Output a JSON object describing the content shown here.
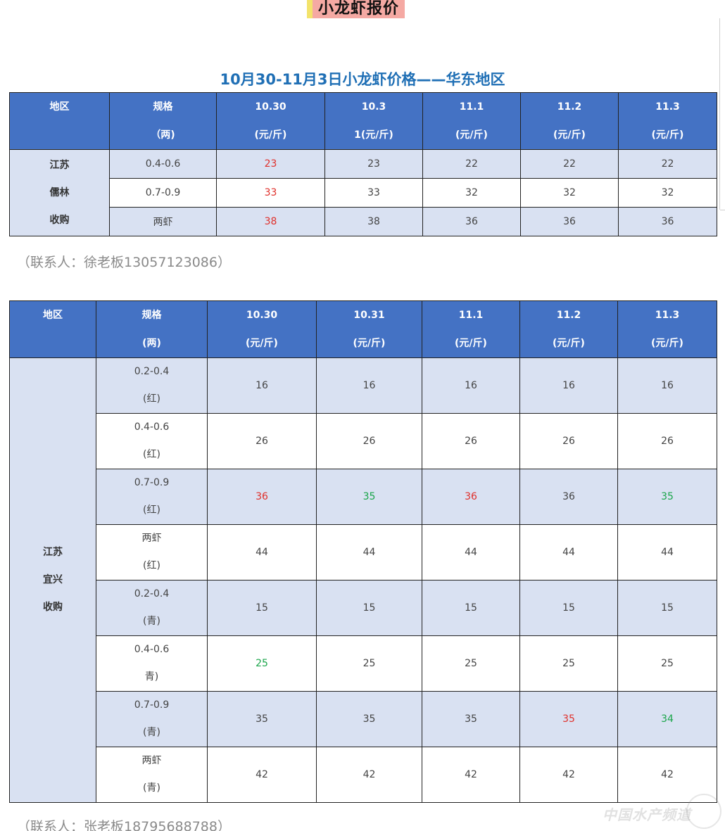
{
  "banner": {
    "title": "小龙虾报价"
  },
  "table1": {
    "title": "10月30-11月3日小龙虾价格——华东地区",
    "headers": [
      {
        "l1": "地区",
        "l2": ""
      },
      {
        "l1": "规格",
        "l2": "（两)"
      },
      {
        "l1": "10.30",
        "l2": "(元/斤)"
      },
      {
        "l1": "10.3",
        "l2": "1(元/斤)"
      },
      {
        "l1": "11.1",
        "l2": "(元/斤)"
      },
      {
        "l1": "11.2",
        "l2": "(元/斤)"
      },
      {
        "l1": "11.3",
        "l2": "(元/斤)"
      }
    ],
    "region": [
      "江苏",
      "儒林",
      "收购"
    ],
    "rows": [
      {
        "spec": "0.4-0.6",
        "prices": [
          "23",
          "23",
          "22",
          "22",
          "22"
        ]
      },
      {
        "spec": "0.7-0.9",
        "prices": [
          "33",
          "33",
          "32",
          "32",
          "32"
        ]
      },
      {
        "spec": "两虾",
        "prices": [
          "38",
          "38",
          "36",
          "36",
          "36"
        ]
      }
    ],
    "contact": "（联系人：徐老板13057123086）"
  },
  "table2": {
    "headers": [
      {
        "l1": "地区",
        "l2": ""
      },
      {
        "l1": "规格",
        "l2": "(两)"
      },
      {
        "l1": "10.30",
        "l2": "(元/斤)"
      },
      {
        "l1": "10.31",
        "l2": "(元/斤)"
      },
      {
        "l1": "11.1",
        "l2": "(元/斤)"
      },
      {
        "l1": "11.2",
        "l2": "(元/斤)"
      },
      {
        "l1": "11.3",
        "l2": "(元/斤)"
      }
    ],
    "region": [
      "江苏",
      "宜兴",
      "收购"
    ],
    "rows": [
      {
        "spec": "0.2-0.4",
        "spec2": "(红)",
        "prices": [
          "16",
          "16",
          "16",
          "16",
          "16"
        ]
      },
      {
        "spec": "0.4-0.6",
        "spec2": "(红)",
        "prices": [
          "26",
          "26",
          "26",
          "26",
          "26"
        ]
      },
      {
        "spec": "0.7-0.9",
        "spec2": "(红)",
        "prices": [
          "36",
          "35",
          "36",
          "36",
          "35"
        ]
      },
      {
        "spec": "两虾",
        "spec2": "(红)",
        "prices": [
          "44",
          "44",
          "44",
          "44",
          "44"
        ]
      },
      {
        "spec": "0.2-0.4",
        "spec2": "(青)",
        "prices": [
          "15",
          "15",
          "15",
          "15",
          "15"
        ]
      },
      {
        "spec": "0.4-0.6",
        "spec2": "青)",
        "prices": [
          "25",
          "25",
          "25",
          "25",
          "25"
        ]
      },
      {
        "spec": "0.7-0.9",
        "spec2": "(青)",
        "prices": [
          "35",
          "35",
          "35",
          "35",
          "34"
        ]
      },
      {
        "spec": "两虾",
        "spec2": "(青)",
        "prices": [
          "42",
          "42",
          "42",
          "42",
          "42"
        ]
      }
    ],
    "contact": "（联系人：张老板18795688788）"
  },
  "colors": {
    "header_bg": "#4472c4",
    "shade_bg": "#d9e1f2",
    "up_red": "#e0302b",
    "down_green": "#1aa54a",
    "title_blue": "#1f6fb5"
  },
  "watermark": "中国水产频道"
}
